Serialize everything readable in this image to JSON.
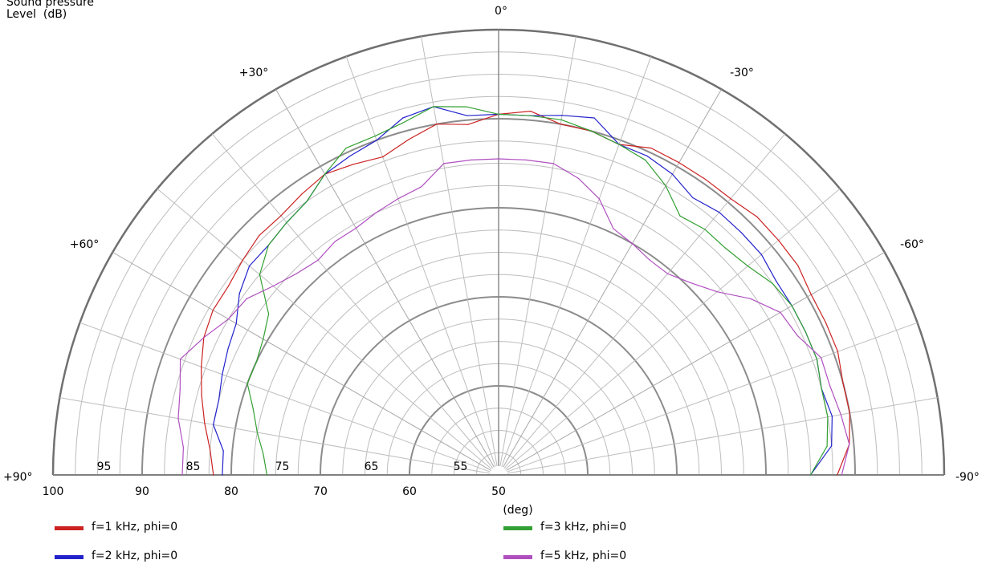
{
  "chart_data": {
    "type": "polar",
    "ylabel_lines": [
      "Sound pressure",
      "Level  (dB)"
    ],
    "xlabel": "(deg)",
    "angle_labels": [
      {
        "angle": 0,
        "text": "0°"
      },
      {
        "angle": 30,
        "text": "+30°"
      },
      {
        "angle": -30,
        "text": "-30°"
      },
      {
        "angle": 60,
        "text": "+60°"
      },
      {
        "angle": -60,
        "text": "-60°"
      },
      {
        "angle": 90,
        "text": "+90°"
      },
      {
        "angle": -90,
        "text": "-90°"
      }
    ],
    "radial_range": [
      50,
      100
    ],
    "radial_ticks": [
      "100",
      "90",
      "80",
      "70",
      "60",
      "50"
    ],
    "radial_minor_labels": [
      "95",
      "85",
      "75",
      "65",
      "55"
    ],
    "legend_position": "bottom",
    "series": [
      {
        "name": "f=1 kHz, phi=0",
        "color": "#cc2222",
        "angles": [
          90,
          85,
          80,
          75,
          70,
          65,
          60,
          55,
          50,
          45,
          40,
          35,
          30,
          25,
          20,
          15,
          10,
          5,
          0,
          -5,
          -10,
          -15,
          -20,
          -25,
          -30,
          -35,
          -40,
          -45,
          -50,
          -55,
          -60,
          -65,
          -70,
          -75,
          -80,
          -85,
          -90
        ],
        "values": [
          82,
          82.5,
          83.5,
          84.5,
          85.5,
          86.5,
          87,
          87,
          87.5,
          88,
          88,
          88.5,
          89,
          88.5,
          88,
          89,
          90,
          89.5,
          90.5,
          91,
          90,
          90,
          89.5,
          90.5,
          90.5,
          90.5,
          90.5,
          91,
          91,
          91,
          90.5,
          90.5,
          90.5,
          90,
          90,
          89.5,
          88
        ]
      },
      {
        "name": "f=2 kHz, phi=0",
        "color": "#2222cc",
        "angles": [
          90,
          85,
          80,
          75,
          70,
          65,
          60,
          55,
          50,
          45,
          40,
          35,
          30,
          25,
          20,
          15,
          10,
          5,
          0,
          -5,
          -10,
          -15,
          -20,
          -25,
          -30,
          -35,
          -40,
          -45,
          -50,
          -55,
          -60,
          -65,
          -70,
          -75,
          -80,
          -85,
          -90
        ],
        "values": [
          81,
          81,
          82.5,
          82.5,
          83,
          83.5,
          84,
          85.5,
          86.5,
          86.5,
          87,
          87.5,
          89,
          89.5,
          90,
          91.5,
          92,
          90.5,
          90.5,
          90.5,
          91,
          91.5,
          89.5,
          89.5,
          89,
          88,
          88.5,
          88.5,
          88.5,
          88,
          88,
          88,
          88,
          87.5,
          88,
          87.5,
          85
        ]
      },
      {
        "name": "f=3 kHz, phi=0",
        "color": "#33a033",
        "angles": [
          90,
          85,
          80,
          75,
          70,
          65,
          60,
          55,
          50,
          45,
          40,
          35,
          30,
          25,
          20,
          15,
          10,
          5,
          0,
          -5,
          -10,
          -15,
          -20,
          -25,
          -30,
          -35,
          -40,
          -45,
          -50,
          -55,
          -60,
          -65,
          -70,
          -75,
          -80,
          -85,
          -90
        ],
        "values": [
          76,
          76.5,
          77.5,
          78.5,
          80,
          80,
          80.5,
          81.5,
          85,
          86.5,
          87,
          87.5,
          89,
          90.5,
          90.5,
          91,
          92,
          91.5,
          90.5,
          90.5,
          90.5,
          90,
          89.5,
          89,
          87.5,
          85.5,
          86,
          86,
          86.5,
          87.5,
          88,
          88,
          88,
          87.5,
          87.5,
          87,
          85
        ]
      },
      {
        "name": "f=5 kHz, phi=0",
        "color": "#b050c0",
        "angles": [
          90,
          85,
          80,
          75,
          70,
          65,
          60,
          55,
          50,
          45,
          40,
          35,
          30,
          25,
          20,
          15,
          10,
          5,
          0,
          -5,
          -10,
          -15,
          -20,
          -25,
          -30,
          -35,
          -40,
          -45,
          -50,
          -55,
          -60,
          -65,
          -70,
          -75,
          -80,
          -85,
          -90
        ],
        "values": [
          85.5,
          85.5,
          86.5,
          87,
          88,
          86.5,
          85,
          84.5,
          83,
          82,
          81.5,
          82,
          82,
          82.5,
          83,
          83.5,
          85.5,
          85.5,
          85.5,
          85.5,
          85.5,
          84.5,
          83,
          80.5,
          80,
          79.5,
          79.5,
          80.5,
          82,
          84.5,
          86.5,
          87,
          88.5,
          88.5,
          89,
          89.5,
          88.5
        ]
      }
    ]
  }
}
